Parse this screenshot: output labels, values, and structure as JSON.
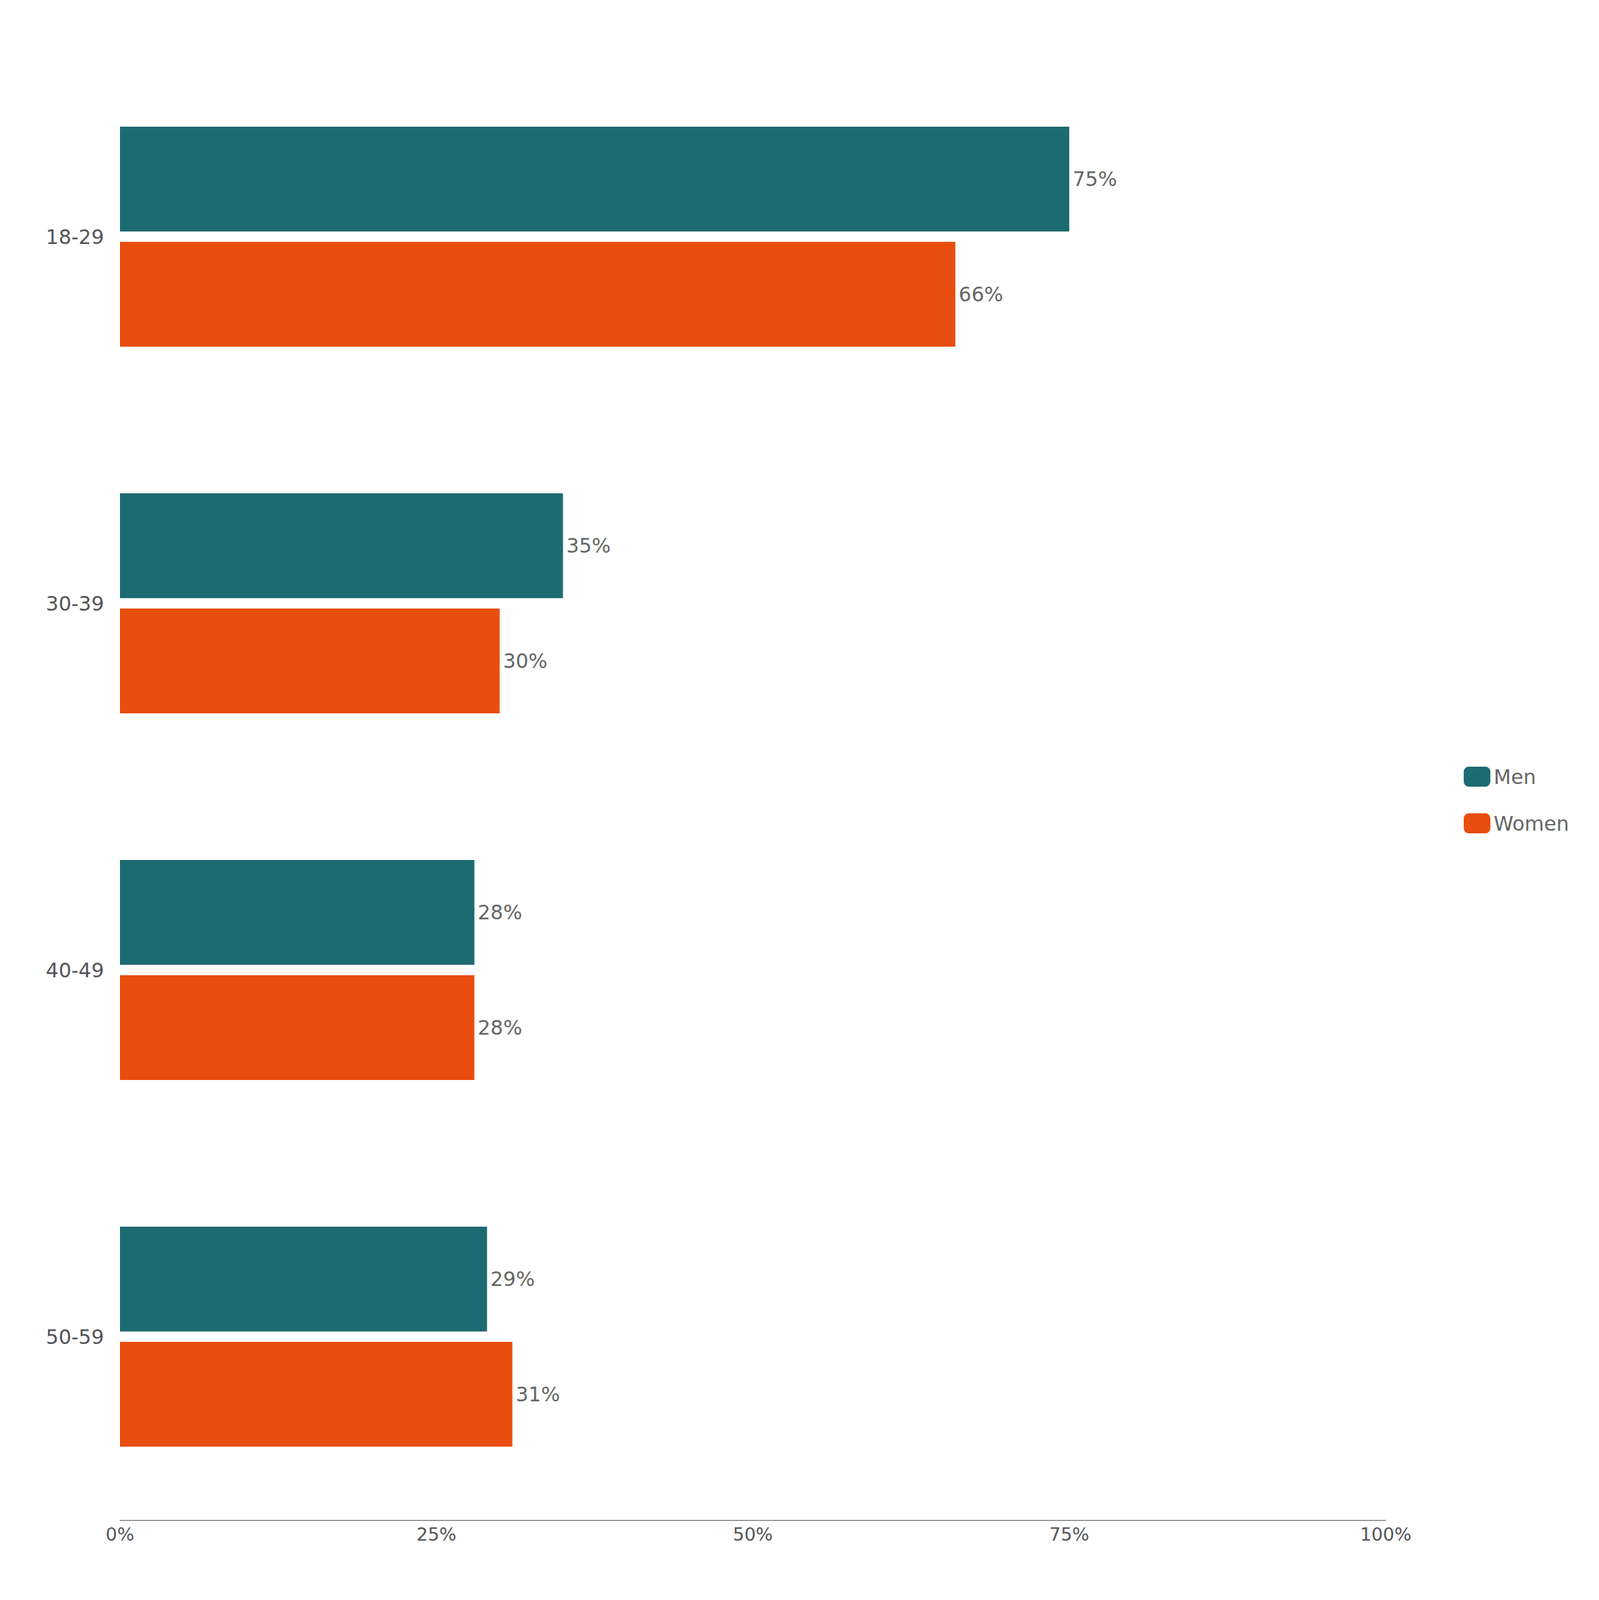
{
  "chart_data": {
    "type": "bar",
    "orientation": "horizontal",
    "categories": [
      "18-29",
      "30-39",
      "40-49",
      "50-59"
    ],
    "series": [
      {
        "name": "Men",
        "color": "#1d6b72",
        "values": [
          75,
          35,
          28,
          29
        ],
        "value_labels": [
          "75%",
          "35%",
          "28%",
          "29%"
        ]
      },
      {
        "name": "Women",
        "color": "#e84e0f",
        "values": [
          66,
          30,
          28,
          31
        ],
        "value_labels": [
          "66%",
          "30%",
          "28%",
          "31%"
        ]
      }
    ],
    "xlim": [
      0,
      100
    ],
    "xticks": [
      {
        "value": 0,
        "label": "0%"
      },
      {
        "value": 25,
        "label": "25%"
      },
      {
        "value": 50,
        "label": "50%"
      },
      {
        "value": 75,
        "label": "75%"
      },
      {
        "value": 100,
        "label": "100%"
      }
    ],
    "grid": false,
    "legend": "right",
    "data_labels": true
  }
}
